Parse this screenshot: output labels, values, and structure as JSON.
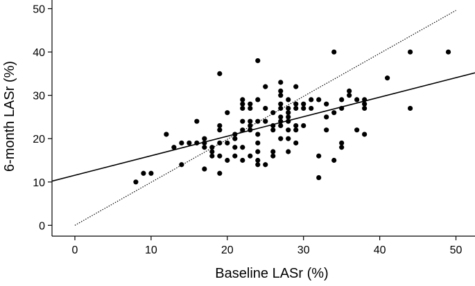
{
  "chart_data": {
    "type": "scatter",
    "xlabel": "Baseline LASr (%)",
    "ylabel": "6-month LASr (%)",
    "xlim": [
      -3,
      52.5
    ],
    "ylim": [
      -2.5,
      52
    ],
    "xticks": [
      0,
      10,
      20,
      30,
      40,
      50
    ],
    "yticks": [
      0,
      10,
      20,
      30,
      40,
      50
    ],
    "grid": false,
    "points": [
      [
        8,
        10
      ],
      [
        9,
        12
      ],
      [
        10,
        12
      ],
      [
        12,
        21
      ],
      [
        13,
        18
      ],
      [
        14,
        19
      ],
      [
        14,
        14
      ],
      [
        15,
        19
      ],
      [
        16,
        19
      ],
      [
        16,
        24
      ],
      [
        17,
        19
      ],
      [
        17,
        18
      ],
      [
        17,
        20
      ],
      [
        17,
        13
      ],
      [
        18,
        17
      ],
      [
        18,
        16
      ],
      [
        18,
        18
      ],
      [
        19,
        35
      ],
      [
        19,
        23
      ],
      [
        19,
        22
      ],
      [
        19,
        19
      ],
      [
        19,
        16
      ],
      [
        19,
        12
      ],
      [
        20,
        26
      ],
      [
        20,
        19
      ],
      [
        20,
        15
      ],
      [
        21,
        21
      ],
      [
        21,
        20
      ],
      [
        21,
        18
      ],
      [
        21,
        16
      ],
      [
        22,
        29
      ],
      [
        22,
        28
      ],
      [
        22,
        27
      ],
      [
        22,
        24
      ],
      [
        22,
        22
      ],
      [
        22,
        18
      ],
      [
        22,
        15
      ],
      [
        23,
        28
      ],
      [
        23,
        27
      ],
      [
        23,
        24
      ],
      [
        23,
        23
      ],
      [
        23,
        22
      ],
      [
        23,
        16
      ],
      [
        24,
        38
      ],
      [
        24,
        29
      ],
      [
        24,
        24
      ],
      [
        24,
        21
      ],
      [
        24,
        19
      ],
      [
        24,
        17
      ],
      [
        24,
        15
      ],
      [
        24,
        14
      ],
      [
        25,
        32
      ],
      [
        25,
        27
      ],
      [
        25,
        24
      ],
      [
        25,
        14
      ],
      [
        26,
        26
      ],
      [
        26,
        23
      ],
      [
        26,
        22
      ],
      [
        26,
        17
      ],
      [
        26,
        16
      ],
      [
        27,
        33
      ],
      [
        27,
        31
      ],
      [
        27,
        30
      ],
      [
        27,
        28
      ],
      [
        27,
        27
      ],
      [
        27,
        25
      ],
      [
        27,
        24
      ],
      [
        27,
        23
      ],
      [
        27,
        20
      ],
      [
        28,
        29
      ],
      [
        28,
        27
      ],
      [
        28,
        26
      ],
      [
        28,
        25
      ],
      [
        28,
        24
      ],
      [
        28,
        22
      ],
      [
        28,
        20
      ],
      [
        28,
        17
      ],
      [
        29,
        32
      ],
      [
        29,
        28
      ],
      [
        29,
        27
      ],
      [
        29,
        23
      ],
      [
        29,
        22
      ],
      [
        29,
        19
      ],
      [
        30,
        28
      ],
      [
        30,
        27
      ],
      [
        30,
        23
      ],
      [
        31,
        29
      ],
      [
        31,
        27
      ],
      [
        32,
        29
      ],
      [
        32,
        16
      ],
      [
        32,
        11
      ],
      [
        33,
        28
      ],
      [
        33,
        25
      ],
      [
        33,
        22
      ],
      [
        34,
        40
      ],
      [
        34,
        26
      ],
      [
        34,
        15
      ],
      [
        35,
        29
      ],
      [
        35,
        27
      ],
      [
        35,
        19
      ],
      [
        35,
        18
      ],
      [
        36,
        31
      ],
      [
        36,
        30
      ],
      [
        37,
        29
      ],
      [
        37,
        22
      ],
      [
        38,
        29
      ],
      [
        38,
        28
      ],
      [
        38,
        27
      ],
      [
        38,
        21
      ],
      [
        41,
        34
      ],
      [
        44,
        40
      ],
      [
        44,
        27
      ],
      [
        49,
        40
      ]
    ],
    "lines": [
      {
        "style": "solid",
        "from": [
          -3,
          10.2
        ],
        "to": [
          52.5,
          35.2
        ]
      },
      {
        "style": "dotted",
        "from": [
          0,
          0
        ],
        "to": [
          50,
          49.6
        ]
      }
    ]
  }
}
